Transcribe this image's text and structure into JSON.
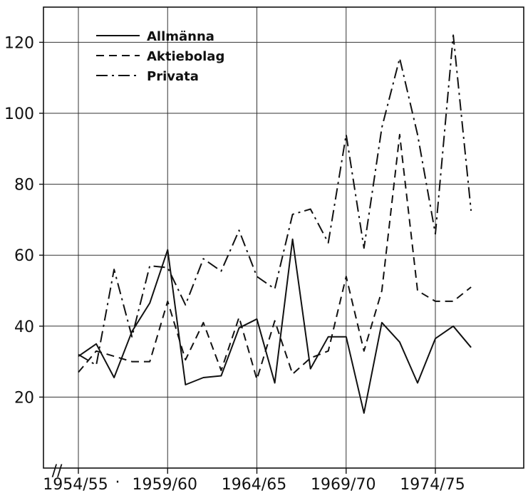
{
  "chart_data": {
    "type": "line",
    "x": [
      "1954/55",
      "1955/56",
      "1956/57",
      "1957/58",
      "1958/59",
      "1959/60",
      "1960/61",
      "1961/62",
      "1962/63",
      "1963/64",
      "1964/65",
      "1965/66",
      "1966/67",
      "1967/68",
      "1968/69",
      "1969/70",
      "1970/71",
      "1971/72",
      "1972/73",
      "1973/74",
      "1974/75",
      "1975/76",
      "1976/77"
    ],
    "x_tick_labels": [
      "1954/55",
      "1959/60",
      "1964/65",
      "1969/70",
      "1974/75"
    ],
    "x_tick_marker": "·",
    "axis_break_symbol": "//",
    "y_ticks": [
      20,
      40,
      60,
      80,
      100,
      120
    ],
    "ylim": [
      0,
      130
    ],
    "grid": true,
    "legend_position": "top-left",
    "series": [
      {
        "name": "Allmänna",
        "style": "solid",
        "values": [
          31.5,
          35,
          25.5,
          38.5,
          46.5,
          61.5,
          23.5,
          25.5,
          26,
          39.5,
          42,
          24,
          64.5,
          28,
          37,
          37,
          15.5,
          41,
          35.5,
          24,
          36.5,
          40,
          34
        ]
      },
      {
        "name": "Aktiebolag",
        "style": "dashed",
        "values": [
          27,
          33,
          31.5,
          30,
          30,
          47,
          30.5,
          41,
          27.5,
          42.5,
          25,
          41.5,
          26.5,
          31,
          33,
          54,
          33,
          50,
          94,
          50,
          47,
          47,
          51
        ]
      },
      {
        "name": "Privata",
        "style": "dashdot",
        "values": [
          32,
          29,
          56,
          37,
          57,
          56.5,
          46,
          59,
          55.5,
          67,
          54,
          50.5,
          71.5,
          73,
          63.5,
          94,
          62,
          96,
          115.5,
          94,
          66,
          122,
          72.5
        ]
      }
    ]
  }
}
